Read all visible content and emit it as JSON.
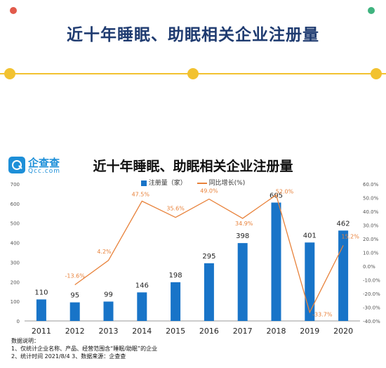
{
  "header": {
    "title": "近十年睡眠、助眠相关企业注册量"
  },
  "logo": {
    "name": "企查查",
    "domain": "Qcc.com"
  },
  "colors": {
    "accent": "#f2c230",
    "bar": "#1874c8",
    "line": "#e8823b",
    "title": "#1f3b70"
  },
  "chart_data": {
    "type": "bar",
    "title": "近十年睡眠、助眠相关企业注册量",
    "categories": [
      "2011",
      "2012",
      "2013",
      "2014",
      "2015",
      "2016",
      "2017",
      "2018",
      "2019",
      "2020"
    ],
    "series": [
      {
        "name": "注册量（家）",
        "type": "bar",
        "axis": "left",
        "values": [
          110,
          95,
          99,
          146,
          198,
          295,
          398,
          605,
          401,
          462
        ],
        "labels": [
          "110",
          "95",
          "99",
          "146",
          "198",
          "295",
          "398",
          "605",
          "401",
          "462"
        ]
      },
      {
        "name": "同比增长(%)",
        "type": "line",
        "axis": "right",
        "values": [
          null,
          -13.6,
          4.2,
          47.5,
          35.6,
          49.0,
          34.9,
          52.0,
          -33.7,
          15.2
        ],
        "labels": [
          "",
          "-13.6%",
          "4.2%",
          "47.5%",
          "35.6%",
          "49.0%",
          "34.9%",
          "52.0%",
          "-33.7%",
          "15.2%"
        ]
      }
    ],
    "y_left": {
      "min": 0,
      "max": 700,
      "ticks": [
        "0",
        "100",
        "200",
        "300",
        "400",
        "500",
        "600",
        "700"
      ]
    },
    "y_right": {
      "min": -40,
      "max": 60,
      "ticks": [
        "-40.0%",
        "-30.0%",
        "-20.0%",
        "-10.0%",
        "0.0%",
        "10.0%",
        "20.0%",
        "30.0%",
        "40.0%",
        "50.0%",
        "60.0%"
      ]
    },
    "legend_position": "top-center",
    "grid": false
  },
  "notes": {
    "heading": "数据说明：",
    "line1": "1、仅统计企业名称、产品、经营范围含“睡眠/助眠”的企业",
    "line2": "2、统计时间 2021/8/4    3、数据来源：企查查"
  }
}
